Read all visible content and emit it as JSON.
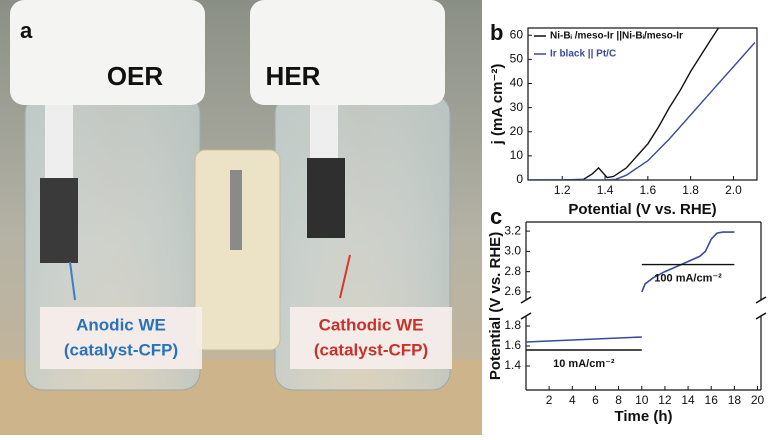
{
  "photo": {
    "panel_label": "a",
    "left_title": "OER",
    "right_title": "HER",
    "left_label": [
      "Anodic WE",
      "(catalyst-CFP)"
    ],
    "right_label": [
      "Cathodic WE",
      "(catalyst-CFP)"
    ]
  },
  "chart_data": [
    {
      "type": "line",
      "panel_label": "b",
      "xlabel": "Potential (V vs. RHE)",
      "ylabel": "j (mA cm⁻²)",
      "xlim": [
        1.04,
        2.11
      ],
      "ylim": [
        0,
        63
      ],
      "xticks": [
        1.2,
        1.4,
        1.6,
        1.8,
        {
          "value": 2,
          "label": "2.0"
        }
      ],
      "yticks": [
        0,
        10,
        20,
        30,
        40,
        50,
        60
      ],
      "legend": "upper left",
      "series": [
        {
          "name": "Ni-Bᵢ /meso-Ir ||Ni-Bᵢ/meso-Ir",
          "color": "#111111",
          "x": [
            1.05,
            1.1,
            1.2,
            1.3,
            1.34,
            1.37,
            1.39,
            1.41,
            1.44,
            1.5,
            1.55,
            1.6,
            1.65,
            1.7,
            1.75,
            1.8,
            1.85,
            1.9,
            1.93
          ],
          "values": [
            0,
            0,
            0,
            0.3,
            2.5,
            5,
            3,
            1,
            1.5,
            5,
            10,
            15,
            22,
            30,
            37,
            45,
            52,
            59,
            63
          ]
        },
        {
          "name": "Ir black || Pt/C",
          "color": "#3a4a9a",
          "x": [
            1.05,
            1.2,
            1.4,
            1.45,
            1.5,
            1.55,
            1.6,
            1.7,
            1.8,
            1.9,
            2.0,
            2.1
          ],
          "values": [
            0,
            0,
            0,
            0.3,
            2,
            5,
            8,
            17,
            27,
            37,
            47,
            57
          ]
        }
      ]
    },
    {
      "type": "broken-line",
      "panel_label": "c",
      "xlabel": "Time (h)",
      "ylabel": "Potential (V vs. RHE)",
      "xlim": [
        0,
        20.3
      ],
      "ylim": [
        1.16,
        3.29
      ],
      "ybreak": [
        1.9,
        2.52
      ],
      "xticks": [
        2,
        4,
        6,
        8,
        10,
        12,
        14,
        16,
        18,
        20
      ],
      "yticks": [
        1.4,
        1.6,
        1.8,
        2.6,
        2.8,
        {
          "value": 3,
          "label": "3.0"
        },
        3.2
      ],
      "x": [
        0,
        2,
        4,
        6,
        8,
        10,
        10,
        10,
        10.3,
        11,
        12,
        13,
        14,
        15,
        15.5,
        16,
        16.5,
        17,
        18
      ],
      "series": [
        {
          "color": "#3a4a9a",
          "values": [
            1.64,
            1.65,
            1.66,
            1.67,
            1.68,
            1.69,
            null,
            2.6,
            2.68,
            2.74,
            2.8,
            2.85,
            2.9,
            2.95,
            3.0,
            3.12,
            3.18,
            3.19,
            3.19
          ]
        }
      ],
      "annotations": [
        {
          "text": "10 mA/cm⁻²",
          "x": [
            0,
            10
          ],
          "y": 1.56
        },
        {
          "text": "100 mA/cm⁻²",
          "x": [
            10,
            18
          ],
          "y": 2.87
        }
      ]
    }
  ]
}
